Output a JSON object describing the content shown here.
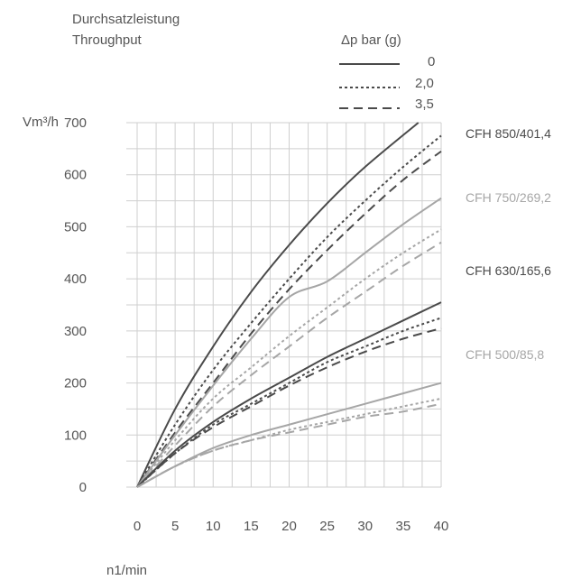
{
  "title_de": "Durchsatzleistung",
  "title_en": "Throughput",
  "legend": {
    "title": "Δp bar (g)",
    "entries": [
      {
        "label": "0",
        "style": "solid"
      },
      {
        "label": "2,0",
        "style": "dotted"
      },
      {
        "label": "3,5",
        "style": "dashed"
      }
    ]
  },
  "colors": {
    "dark": "#4a4a4a",
    "light": "#a6a6a6",
    "grid": "#cfcfcf",
    "text": "#555555"
  },
  "chart_data": {
    "type": "line",
    "title": "Durchsatzleistung Throughput",
    "ylabel": "Vm³/h",
    "xlabel": "n1/min",
    "xlim": [
      0,
      40
    ],
    "ylim": [
      0,
      700
    ],
    "xticks": [
      0,
      5,
      10,
      15,
      20,
      25,
      30,
      35,
      40
    ],
    "yticks": [
      0,
      100,
      200,
      300,
      400,
      500,
      600,
      700
    ],
    "x_tick_labels": [
      "0",
      "5",
      "10",
      "15",
      "20",
      "25",
      "30",
      "35",
      "40"
    ],
    "y_tick_labels": [
      "0",
      "100",
      "200",
      "300",
      "400",
      "500",
      "600",
      "700"
    ],
    "grid": true,
    "legend_position": "top-right",
    "groups": [
      {
        "model": "CFH 850/401,4",
        "color": "dark",
        "series": [
          {
            "dp": "0",
            "style": "solid",
            "x": [
              0,
              5,
              10,
              15,
              20,
              25,
              30,
              37
            ],
            "y": [
              0,
              150,
              270,
              375,
              465,
              545,
              615,
              700
            ]
          },
          {
            "dp": "2,0",
            "style": "dotted",
            "x": [
              0,
              5,
              10,
              15,
              20,
              25,
              30,
              35,
              40
            ],
            "y": [
              0,
              120,
              225,
              315,
              400,
              480,
              550,
              615,
              675
            ]
          },
          {
            "dp": "3,5",
            "style": "dashed",
            "x": [
              0,
              5,
              10,
              15,
              20,
              25,
              30,
              35,
              40
            ],
            "y": [
              0,
              105,
              200,
              295,
              380,
              455,
              525,
              590,
              645
            ]
          }
        ]
      },
      {
        "model": "CFH 750/269,2",
        "color": "light",
        "series": [
          {
            "dp": "0",
            "style": "solid",
            "x": [
              0,
              5,
              10,
              15,
              20,
              25,
              30,
              35,
              40
            ],
            "y": [
              0,
              100,
              195,
              285,
              365,
              395,
              450,
              505,
              555
            ]
          },
          {
            "dp": "2,0",
            "style": "dotted",
            "x": [
              0,
              5,
              10,
              15,
              20,
              25,
              30,
              35,
              40
            ],
            "y": [
              0,
              90,
              170,
              230,
              290,
              345,
              400,
              450,
              495
            ]
          },
          {
            "dp": "3,5",
            "style": "dashed",
            "x": [
              0,
              5,
              10,
              15,
              20,
              25,
              30,
              35,
              40
            ],
            "y": [
              0,
              80,
              155,
              215,
              270,
              325,
              375,
              425,
              470
            ]
          }
        ]
      },
      {
        "model": "CFH 630/165,6",
        "color": "dark",
        "series": [
          {
            "dp": "0",
            "style": "solid",
            "x": [
              0,
              5,
              10,
              15,
              20,
              25,
              30,
              35,
              40
            ],
            "y": [
              0,
              70,
              125,
              170,
              210,
              250,
              285,
              320,
              355
            ]
          },
          {
            "dp": "2,0",
            "style": "dotted",
            "x": [
              0,
              5,
              10,
              15,
              20,
              25,
              30,
              35,
              40
            ],
            "y": [
              0,
              65,
              120,
              160,
              200,
              240,
              270,
              300,
              325
            ]
          },
          {
            "dp": "3,5",
            "style": "dashed",
            "x": [
              0,
              5,
              10,
              15,
              20,
              25,
              30,
              35,
              40
            ],
            "y": [
              0,
              65,
              115,
              155,
              195,
              230,
              260,
              285,
              305
            ]
          }
        ]
      },
      {
        "model": "CFH 500/85,8",
        "color": "light",
        "series": [
          {
            "dp": "0",
            "style": "solid",
            "x": [
              0,
              5,
              10,
              15,
              20,
              25,
              30,
              35,
              40
            ],
            "y": [
              0,
              40,
              75,
              100,
              120,
              140,
              160,
              180,
              200
            ]
          },
          {
            "dp": "2,0",
            "style": "dotted",
            "x": [
              0,
              5,
              10,
              15,
              20,
              25,
              30,
              35,
              40
            ],
            "y": [
              0,
              40,
              70,
              90,
              110,
              125,
              140,
              155,
              170
            ]
          },
          {
            "dp": "3,5",
            "style": "dashed",
            "x": [
              0,
              5,
              10,
              15,
              20,
              25,
              30,
              35,
              40
            ],
            "y": [
              0,
              40,
              70,
              90,
              105,
              120,
              135,
              145,
              160
            ]
          }
        ]
      }
    ]
  }
}
